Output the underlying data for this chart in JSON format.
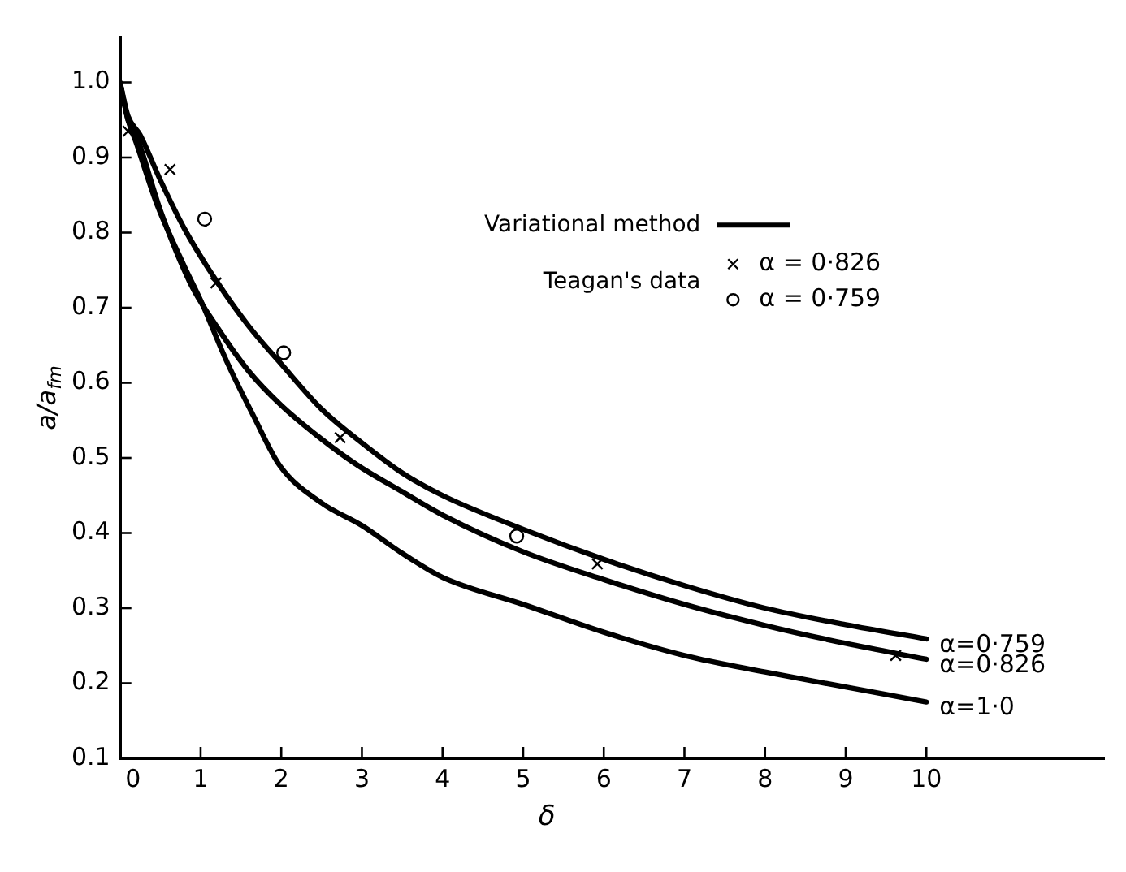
{
  "chart_data": {
    "type": "line",
    "xlabel": "δ",
    "ylabel": "a/a$_{fm}$",
    "xlim": [
      0,
      12.2
    ],
    "ylim": [
      0.1,
      1.06
    ],
    "xticks": [
      0,
      1,
      2,
      3,
      4,
      5,
      6,
      7,
      8,
      9,
      10
    ],
    "yticks": [
      0.1,
      0.2,
      0.3,
      0.4,
      0.5,
      0.6,
      0.7,
      0.8,
      0.9,
      {
        "value": 1.0,
        "label": "1.0"
      }
    ],
    "legend": "top right",
    "legend_title": "Teagan's data",
    "annotations": [
      "Variational method"
    ],
    "series": [
      {
        "name": "α=0·759",
        "color": "#000000",
        "marker": "none",
        "x": [
          0,
          0.1,
          0.25,
          0.5,
          0.8,
          1.2,
          1.6,
          2,
          2.5,
          3,
          3.5,
          4,
          5,
          6,
          7,
          8,
          9,
          10
        ],
        "values": [
          1.0,
          0.955,
          0.93,
          0.87,
          0.805,
          0.735,
          0.675,
          0.625,
          0.565,
          0.52,
          0.48,
          0.45,
          0.405,
          0.365,
          0.33,
          0.3,
          0.278,
          0.259
        ]
      },
      {
        "name": "α=0·826",
        "color": "#000000",
        "marker": "none",
        "x": [
          0,
          0.1,
          0.2,
          0.5,
          0.87,
          1.2,
          1.6,
          2,
          2.5,
          2.95,
          3.5,
          4,
          5,
          6,
          7,
          8,
          9,
          10
        ],
        "values": [
          1.0,
          0.95,
          0.93,
          0.83,
          0.733,
          0.675,
          0.615,
          0.57,
          0.525,
          0.49,
          0.455,
          0.424,
          0.375,
          0.338,
          0.305,
          0.277,
          0.253,
          0.232
        ]
      },
      {
        "name": "α=1·0",
        "color": "#000000",
        "marker": "none",
        "x": [
          0,
          0.1,
          0.2,
          0.45,
          0.79,
          1.0,
          1.33,
          1.66,
          1.98,
          2.5,
          3,
          3.5,
          4,
          5,
          6,
          7,
          8,
          9,
          10
        ],
        "values": [
          1.0,
          0.95,
          0.92,
          0.84,
          0.757,
          0.71,
          0.627,
          0.555,
          0.49,
          0.44,
          0.41,
          0.373,
          0.341,
          0.305,
          0.268,
          0.237,
          0.215,
          0.195,
          0.175
        ]
      },
      {
        "name": "α = 0·826",
        "type": "scatter",
        "color": "#000000",
        "marker": "cross",
        "x": [
          0.1,
          0.62,
          1.19,
          2.73,
          5.92,
          9.62
        ],
        "values": [
          0.935,
          0.884,
          0.733,
          0.527,
          0.359,
          0.237
        ]
      },
      {
        "name": "α = 0·759",
        "type": "scatter",
        "color": "#000000",
        "marker": "circle",
        "x": [
          1.05,
          2.03,
          4.92
        ],
        "values": [
          0.818,
          0.64,
          0.396
        ]
      }
    ]
  }
}
